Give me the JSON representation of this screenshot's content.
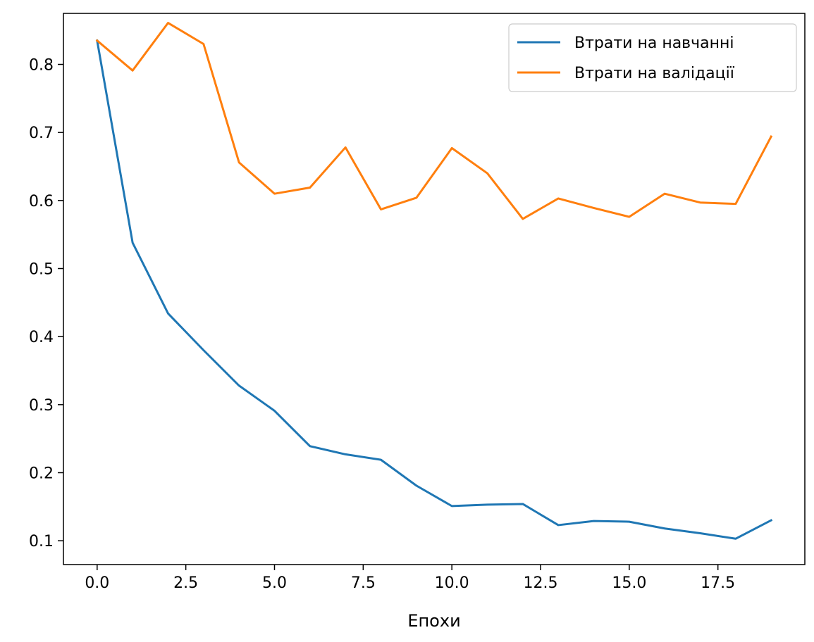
{
  "chart_data": {
    "type": "line",
    "xlabel": "Епохи",
    "ylabel": "",
    "xlim": [
      -0.95,
      19.95
    ],
    "ylim": [
      0.065,
      0.875
    ],
    "x_ticks": [
      0.0,
      2.5,
      5.0,
      7.5,
      10.0,
      12.5,
      15.0,
      17.5
    ],
    "x_tick_labels": [
      "0.0",
      "2.5",
      "5.0",
      "7.5",
      "10.0",
      "12.5",
      "15.0",
      "17.5"
    ],
    "y_ticks": [
      0.1,
      0.2,
      0.3,
      0.4,
      0.5,
      0.6,
      0.7,
      0.8
    ],
    "y_tick_labels": [
      "0.1",
      "0.2",
      "0.3",
      "0.4",
      "0.5",
      "0.6",
      "0.7",
      "0.8"
    ],
    "grid": false,
    "legend_position": "top-right",
    "x": [
      0,
      1,
      2,
      3,
      4,
      5,
      6,
      7,
      8,
      9,
      10,
      11,
      12,
      13,
      14,
      15,
      16,
      17,
      18,
      19
    ],
    "series": [
      {
        "name": "Втрати на навчанні",
        "color": "#1f77b4",
        "values": [
          0.835,
          0.538,
          0.434,
          0.38,
          0.328,
          0.291,
          0.239,
          0.227,
          0.219,
          0.181,
          0.151,
          0.153,
          0.154,
          0.123,
          0.129,
          0.128,
          0.118,
          0.111,
          0.103,
          0.13
        ]
      },
      {
        "name": "Втрати на валідації",
        "color": "#ff7f0e",
        "values": [
          0.835,
          0.791,
          0.861,
          0.83,
          0.656,
          0.61,
          0.619,
          0.678,
          0.587,
          0.604,
          0.677,
          0.64,
          0.573,
          0.603,
          0.589,
          0.576,
          0.61,
          0.597,
          0.595,
          0.694
        ]
      }
    ]
  }
}
